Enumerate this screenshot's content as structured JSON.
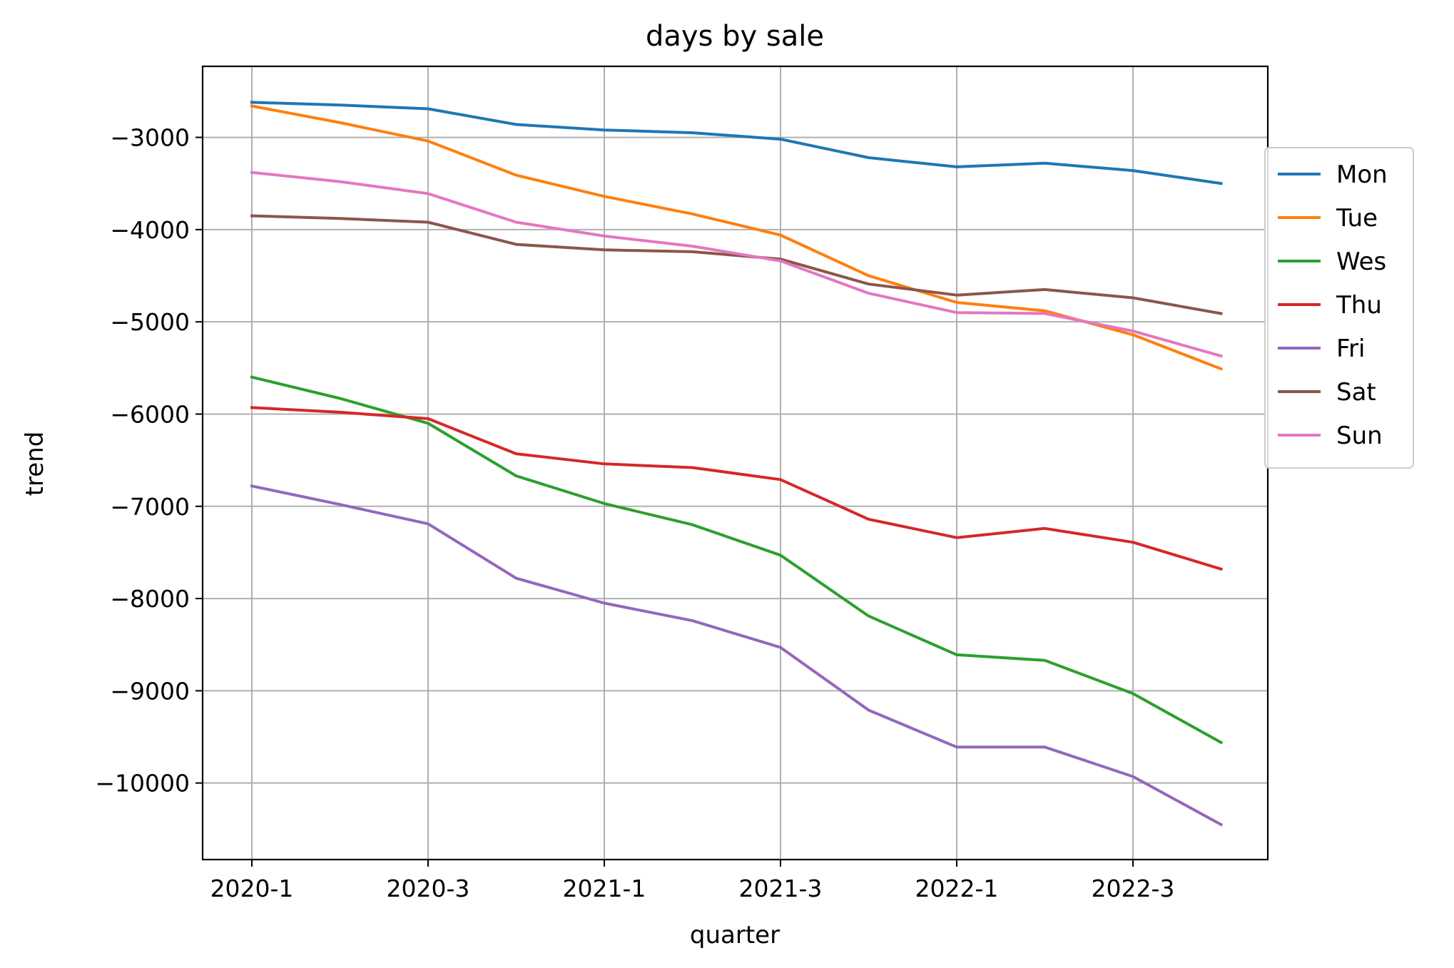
{
  "chart_data": {
    "type": "line",
    "title": "days by sale",
    "xlabel": "quarter",
    "ylabel": "trend",
    "categories": [
      "2020-1",
      "2020-2",
      "2020-3",
      "2020-4",
      "2021-1",
      "2021-2",
      "2021-3",
      "2021-4",
      "2022-1",
      "2022-2",
      "2022-3",
      "2022-4"
    ],
    "x_tick_labels": [
      "2020-1",
      "2020-3",
      "2021-1",
      "2021-3",
      "2022-1",
      "2022-3"
    ],
    "y_ticks": [
      -3000,
      -4000,
      -5000,
      -6000,
      -7000,
      -8000,
      -9000,
      -10000
    ],
    "y_tick_labels": [
      "−3000",
      "−4000",
      "−5000",
      "−6000",
      "−7000",
      "−8000",
      "−9000",
      "−10000"
    ],
    "ylim": [
      -10830,
      -2230
    ],
    "grid": true,
    "legend_position": "right, outside top",
    "series": [
      {
        "name": "Mon",
        "color": "#1f77b4",
        "values": [
          -2620,
          -2650,
          -2690,
          -2860,
          -2920,
          -2950,
          -3020,
          -3220,
          -3320,
          -3280,
          -3360,
          -3500
        ]
      },
      {
        "name": "Tue",
        "color": "#ff7f0e",
        "values": [
          -2660,
          -2840,
          -3040,
          -3410,
          -3640,
          -3830,
          -4060,
          -4500,
          -4790,
          -4880,
          -5140,
          -5510
        ]
      },
      {
        "name": "Wes",
        "color": "#2ca02c",
        "values": [
          -5600,
          -5830,
          -6100,
          -6670,
          -6970,
          -7200,
          -7530,
          -8190,
          -8610,
          -8670,
          -9030,
          -9560
        ]
      },
      {
        "name": "Thu",
        "color": "#d62728",
        "values": [
          -5930,
          -5980,
          -6050,
          -6430,
          -6540,
          -6580,
          -6710,
          -7140,
          -7340,
          -7240,
          -7390,
          -7680
        ]
      },
      {
        "name": "Fri",
        "color": "#9467bd",
        "values": [
          -6780,
          -6980,
          -7190,
          -7780,
          -8050,
          -8240,
          -8530,
          -9210,
          -9610,
          -9610,
          -9930,
          -10450
        ]
      },
      {
        "name": "Sat",
        "color": "#8c564b",
        "values": [
          -3850,
          -3880,
          -3920,
          -4160,
          -4220,
          -4240,
          -4320,
          -4590,
          -4710,
          -4650,
          -4740,
          -4910
        ]
      },
      {
        "name": "Sun",
        "color": "#e377c2",
        "values": [
          -3380,
          -3480,
          -3610,
          -3920,
          -4070,
          -4180,
          -4340,
          -4690,
          -4900,
          -4910,
          -5100,
          -5370
        ]
      }
    ]
  }
}
